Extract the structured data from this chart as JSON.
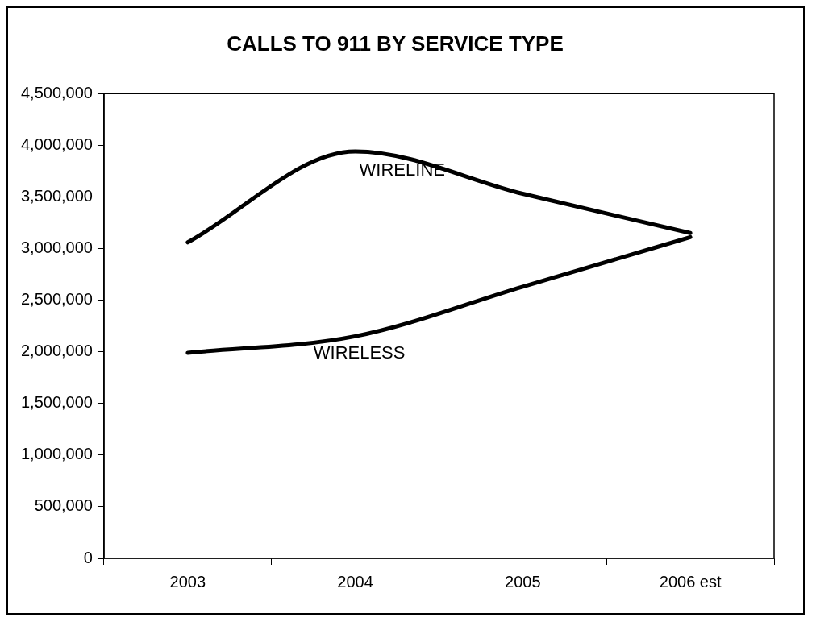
{
  "chart_data": {
    "type": "line",
    "title": "CALLS TO 911 BY SERVICE TYPE",
    "categories": [
      "2003",
      "2004",
      "2005",
      "2006 est"
    ],
    "series": [
      {
        "name": "WIRELINE",
        "color": "#000000",
        "values": [
          3060000,
          3940000,
          3530000,
          3150000
        ]
      },
      {
        "name": "WIRELESS",
        "color": "#000000",
        "values": [
          1990000,
          2150000,
          2630000,
          3110000
        ]
      }
    ],
    "ylim": [
      0,
      4500000
    ],
    "yticks": [
      0,
      {
        "value": 500000,
        "label": "500,000"
      },
      {
        "value": 1000000,
        "label": "1,000,000"
      },
      {
        "value": 1500000,
        "label": "1,500,000"
      },
      {
        "value": 2000000,
        "label": "2,000,000"
      },
      {
        "value": 2500000,
        "label": "2,500,000"
      },
      {
        "value": 3000000,
        "label": "3,000,000"
      },
      {
        "value": 3500000,
        "label": "3,500,000"
      },
      {
        "value": 4000000,
        "label": "4,000,000"
      },
      {
        "value": 4500000,
        "label": "4,500,000"
      }
    ],
    "grid": false,
    "legend": false,
    "marker": "none",
    "line_style": "solid"
  }
}
